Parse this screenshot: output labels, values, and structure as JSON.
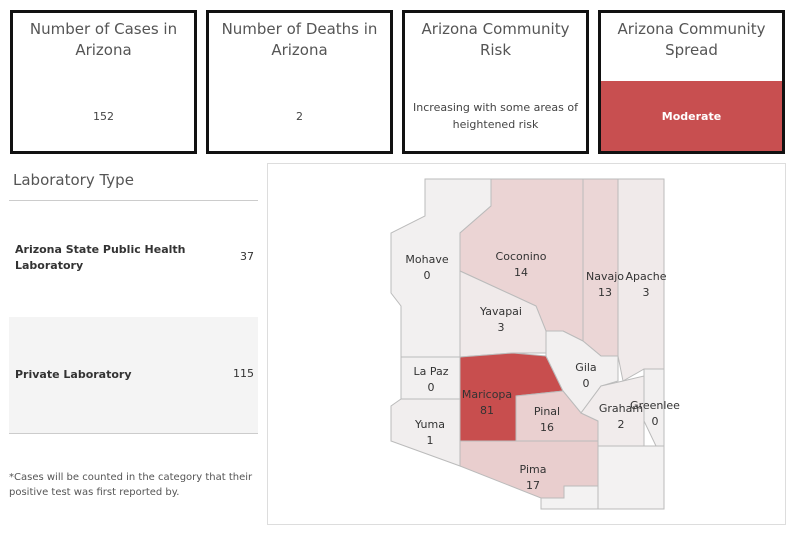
{
  "kpis": [
    {
      "title": "Number of Cases in Arizona",
      "value": "152"
    },
    {
      "title": "Number of Deaths in Arizona",
      "value": "2"
    },
    {
      "title": "Arizona Community Risk",
      "value": "Increasing with some areas of heightened risk"
    },
    {
      "title": "Arizona Community Spread",
      "value": "Moderate"
    }
  ],
  "lab": {
    "title": "Laboratory Type",
    "rows": [
      {
        "name": "Arizona State Public Health Laboratory",
        "count": "37"
      },
      {
        "name": "Private Laboratory",
        "count": "115"
      }
    ]
  },
  "note": "*Cases will be counted in the category that their positive test was first reported by.",
  "map": {
    "counties": [
      {
        "name": "Mohave",
        "cases": 0
      },
      {
        "name": "Coconino",
        "cases": 14
      },
      {
        "name": "Navajo",
        "cases": 13
      },
      {
        "name": "Apache",
        "cases": 3
      },
      {
        "name": "Yavapai",
        "cases": 3
      },
      {
        "name": "La Paz",
        "cases": 0
      },
      {
        "name": "Maricopa",
        "cases": 81
      },
      {
        "name": "Gila",
        "cases": 0
      },
      {
        "name": "Yuma",
        "cases": 1
      },
      {
        "name": "Pinal",
        "cases": 16
      },
      {
        "name": "Graham",
        "cases": 2
      },
      {
        "name": "Greenlee",
        "cases": 0
      },
      {
        "name": "Pima",
        "cases": 17
      }
    ]
  }
}
